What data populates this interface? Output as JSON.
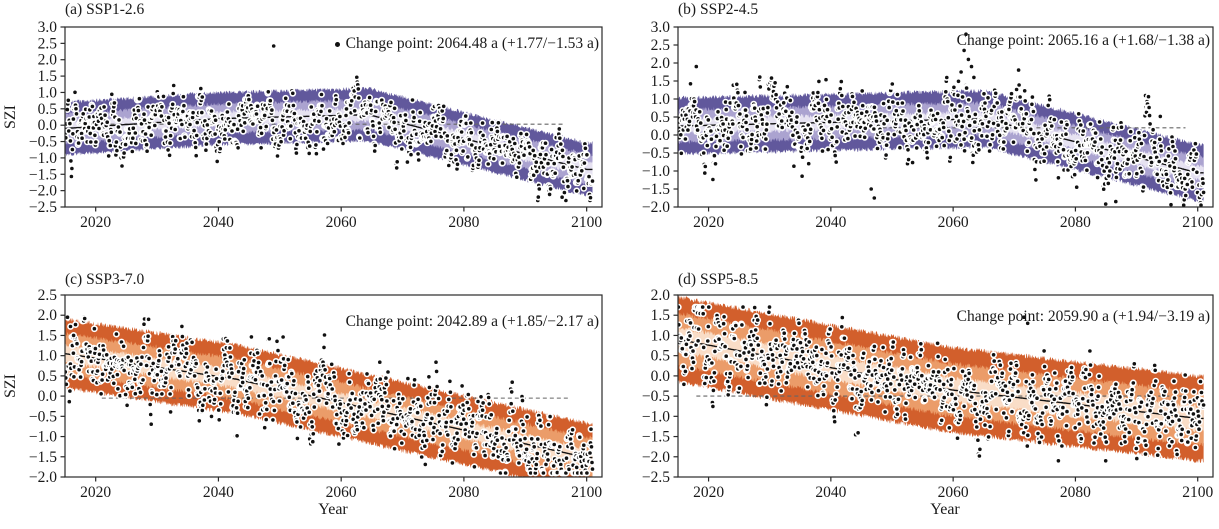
{
  "figure": {
    "background": "#ffffff",
    "ylabel": "SZI",
    "xlabel": "Year",
    "text_color": "#1a1a1a",
    "axis_color": "#2a2a2a",
    "dot_color": "#111111",
    "dot_edge": "#ffffff",
    "trend_color": "#111111",
    "dashed_color": "#666666"
  },
  "chart_data": [
    {
      "id": "a",
      "type": "scatter",
      "title": "(a) SSP1-2.6",
      "annotation": "Change point: 2064.48 a (+1.77/−1.53 a)",
      "legend_marker": true,
      "xlabel": "",
      "ylabel": "SZI",
      "xlim": [
        2015,
        2102.5
      ],
      "xticks": [
        2020,
        2040,
        2060,
        2080,
        2100
      ],
      "ylim": [
        -2.5,
        3.0
      ],
      "yticks": [
        3.0,
        2.5,
        2.0,
        1.5,
        1.0,
        0.5,
        0.0,
        -0.5,
        -1.0,
        -1.5,
        -2.0,
        -2.5
      ],
      "change_point": {
        "year": 2064.48,
        "plus": 1.77,
        "minus": 1.53
      },
      "trend": [
        [
          2015,
          -0.1
        ],
        [
          2040,
          0.2
        ],
        [
          2064.48,
          0.32
        ],
        [
          2100,
          -1.35
        ]
      ],
      "band_halfwidths": [
        0.2,
        0.45,
        0.8
      ],
      "band_colors": [
        "#e6e2f1",
        "#aba3d0",
        "#61589c"
      ],
      "dashed_line": {
        "y": 0.03,
        "x0": 2019,
        "x1": 2096.5
      },
      "scatter": {
        "start": 2015,
        "end": 2101,
        "per_year": 12,
        "noise_sd": 0.34,
        "ar": 0.72,
        "seed": 101,
        "clip": [
          -2.3,
          2.5
        ]
      },
      "outliers": [
        [
          2049,
          2.42
        ],
        [
          2096,
          -2.2
        ]
      ]
    },
    {
      "id": "b",
      "type": "scatter",
      "title": "(b) SSP2-4.5",
      "annotation": "Change point: 2065.16 a (+1.68/−1.38 a)",
      "legend_marker": false,
      "xlabel": "",
      "ylabel": "",
      "xlim": [
        2015,
        2102.5
      ],
      "xticks": [
        2020,
        2040,
        2060,
        2080,
        2100
      ],
      "ylim": [
        -2.0,
        3.0
      ],
      "yticks": [
        3.0,
        2.5,
        2.0,
        1.5,
        1.0,
        0.5,
        0.0,
        -0.5,
        -1.0,
        -1.5,
        -2.0
      ],
      "change_point": {
        "year": 2065.16,
        "plus": 1.68,
        "minus": 1.38
      },
      "trend": [
        [
          2015,
          0.25
        ],
        [
          2065.16,
          0.45
        ],
        [
          2100,
          -1.05
        ]
      ],
      "band_halfwidths": [
        0.2,
        0.45,
        0.78
      ],
      "band_colors": [
        "#e6e2f1",
        "#aba3d0",
        "#61589c"
      ],
      "dashed_line": {
        "y": 0.2,
        "x0": 2045,
        "x1": 2098
      },
      "scatter": {
        "start": 2015,
        "end": 2101,
        "per_year": 12,
        "noise_sd": 0.36,
        "ar": 0.72,
        "seed": 202,
        "clip": [
          -1.95,
          2.85
        ]
      },
      "outliers": [
        [
          2018,
          1.9
        ],
        [
          2061.3,
          1.75
        ],
        [
          2061.8,
          2.35
        ],
        [
          2062.1,
          2.8
        ],
        [
          2062.5,
          2.1
        ],
        [
          2063.0,
          1.9
        ],
        [
          2063.4,
          1.6
        ],
        [
          2046.6,
          -1.5
        ],
        [
          2047.1,
          -1.75
        ],
        [
          2086.6,
          -1.85
        ]
      ]
    },
    {
      "id": "c",
      "type": "scatter",
      "title": "(c) SSP3-7.0",
      "annotation": "Change point: 2042.89 a (+1.85/−2.17 a)",
      "legend_marker": false,
      "xlabel": "Year",
      "ylabel": "SZI",
      "xlim": [
        2015,
        2102.5
      ],
      "xticks": [
        2020,
        2040,
        2060,
        2080,
        2100
      ],
      "ylim": [
        -2.0,
        2.5
      ],
      "yticks": [
        2.5,
        2.0,
        1.5,
        1.0,
        0.5,
        0.0,
        -0.5,
        -1.0,
        -1.5,
        -2.0
      ],
      "change_point": {
        "year": 2042.89,
        "plus": 1.85,
        "minus": 2.17
      },
      "trend": [
        [
          2015,
          1.05
        ],
        [
          2042.89,
          0.42
        ],
        [
          2100,
          -1.52
        ]
      ],
      "band_halfwidths": [
        0.22,
        0.5,
        0.85
      ],
      "band_colors": [
        "#f9ddc7",
        "#eb9c69",
        "#d25f2c"
      ],
      "dashed_line": {
        "y": -0.05,
        "x0": 2021,
        "x1": 2097
      },
      "scatter": {
        "start": 2015,
        "end": 2101,
        "per_year": 12,
        "noise_sd": 0.34,
        "ar": 0.72,
        "seed": 303,
        "clip": [
          -1.9,
          2.05
        ]
      },
      "outliers": [
        [
          2015.4,
          1.95
        ],
        [
          2015.9,
          1.72
        ],
        [
          2016.4,
          1.5
        ]
      ]
    },
    {
      "id": "d",
      "type": "scatter",
      "title": "(d) SSP5-8.5",
      "annotation": "Change point: 2059.90 a (+1.94/−3.19 a)",
      "legend_marker": false,
      "xlabel": "Year",
      "ylabel": "",
      "xlim": [
        2015,
        2102.5
      ],
      "xticks": [
        2020,
        2040,
        2060,
        2080,
        2100
      ],
      "ylim": [
        -2.5,
        2.0
      ],
      "yticks": [
        2.0,
        1.5,
        1.0,
        0.5,
        0.0,
        -0.5,
        -1.0,
        -1.5,
        -2.0,
        -2.5
      ],
      "change_point": {
        "year": 2059.9,
        "plus": 1.94,
        "minus": 3.19
      },
      "trend": [
        [
          2015,
          0.9
        ],
        [
          2059.9,
          -0.35
        ],
        [
          2100,
          -1.05
        ]
      ],
      "band_halfwidths": [
        0.3,
        0.65,
        1.05
      ],
      "band_colors": [
        "#f9ddc7",
        "#eb9c69",
        "#d25f2c"
      ],
      "dashed_line": {
        "y": -0.5,
        "x0": 2018,
        "x1": 2098
      },
      "scatter": {
        "start": 2015,
        "end": 2101,
        "per_year": 12,
        "noise_sd": 0.38,
        "ar": 0.75,
        "seed": 404,
        "clip": [
          -2.3,
          1.7
        ]
      },
      "outliers": [
        [
          2071.6,
          1.45
        ],
        [
          2072.2,
          1.3
        ]
      ]
    }
  ]
}
